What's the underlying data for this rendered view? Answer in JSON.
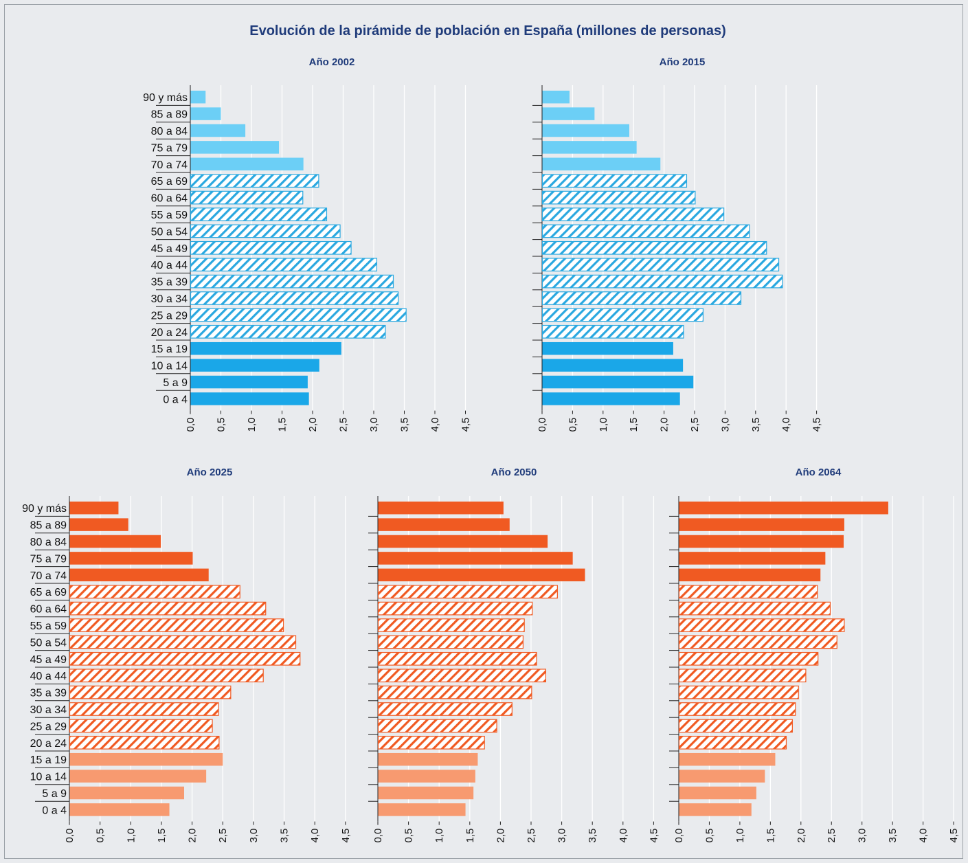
{
  "title": "Evolución de la pirámide de población en España (millones de personas)",
  "colors": {
    "blue_light": "#6ccff6",
    "blue_hatch": "#2aa8e0",
    "blue_dark": "#1aa7e8",
    "orange_dark": "#f05a22",
    "orange_hatch": "#f05a22",
    "orange_light": "#f79a70"
  },
  "chart_data": [
    {
      "type": "bar",
      "title": "Año 2002",
      "categories": [
        "90 y más",
        "85 a 89",
        "80 a 84",
        "75 a 79",
        "70 a 74",
        "65 a 69",
        "60 a 64",
        "55 a 59",
        "50 a 54",
        "45 a 49",
        "40 a 44",
        "35 a 39",
        "30 a 34",
        "25 a 29",
        "20 a 24",
        "15 a 19",
        "10 a 14",
        "5 a 9",
        "0 a 4"
      ],
      "values": [
        0.25,
        0.5,
        0.9,
        1.45,
        1.85,
        2.1,
        1.84,
        2.23,
        2.45,
        2.63,
        3.05,
        3.32,
        3.4,
        3.53,
        3.19,
        2.47,
        2.11,
        1.92,
        1.94
      ],
      "xlim": [
        0,
        4.5
      ],
      "xticks": [
        "0,0",
        "0,5",
        "1,0",
        "1,5",
        "2,0",
        "2,5",
        "3,0",
        "3,5",
        "4,0",
        "4,5"
      ],
      "show_category_labels": true,
      "palette": "blue"
    },
    {
      "type": "bar",
      "title": "Año 2015",
      "categories": [
        "90 y más",
        "85 a 89",
        "80 a 84",
        "75 a 79",
        "70 a 74",
        "65 a 69",
        "60 a 64",
        "55 a 59",
        "50 a 54",
        "45 a 49",
        "40 a 44",
        "35 a 39",
        "30 a 34",
        "25 a 29",
        "20 a 24",
        "15 a 19",
        "10 a 14",
        "5 a 9",
        "0 a 4"
      ],
      "values": [
        0.45,
        0.86,
        1.43,
        1.55,
        1.94,
        2.37,
        2.51,
        2.98,
        3.4,
        3.68,
        3.88,
        3.94,
        3.26,
        2.64,
        2.32,
        2.15,
        2.31,
        2.48,
        2.26
      ],
      "xlim": [
        0,
        4.5
      ],
      "xticks": [
        "0,0",
        "0,5",
        "1,0",
        "1,5",
        "2,0",
        "2,5",
        "3,0",
        "3,5",
        "4,0",
        "4,5"
      ],
      "show_category_labels": false,
      "palette": "blue"
    },
    {
      "type": "bar",
      "title": "Año 2025",
      "categories": [
        "90 y más",
        "85 a 89",
        "80 a 84",
        "75 a 79",
        "70 a 74",
        "65 a 69",
        "60 a 64",
        "55 a 59",
        "50 a 54",
        "45 a 49",
        "40 a 44",
        "35 a 39",
        "30 a 34",
        "25 a 29",
        "20 a 24",
        "15 a 19",
        "10 a 14",
        "5 a 9",
        "0 a 4"
      ],
      "values": [
        0.8,
        0.96,
        1.49,
        2.01,
        2.27,
        2.78,
        3.2,
        3.49,
        3.69,
        3.76,
        3.16,
        2.63,
        2.43,
        2.33,
        2.44,
        2.5,
        2.23,
        1.87,
        1.63
      ],
      "xlim": [
        0,
        4.5
      ],
      "xticks": [
        "0,0",
        "0,5",
        "1,0",
        "1,5",
        "2,0",
        "2,5",
        "3,0",
        "3,5",
        "4,0",
        "4,5"
      ],
      "show_category_labels": true,
      "palette": "orange"
    },
    {
      "type": "bar",
      "title": "Año 2050",
      "categories": [
        "90 y más",
        "85 a 89",
        "80 a 84",
        "75 a 79",
        "70 a 74",
        "65 a 69",
        "60 a 64",
        "55 a 59",
        "50 a 54",
        "45 a 49",
        "40 a 44",
        "35 a 39",
        "30 a 34",
        "25 a 29",
        "20 a 24",
        "15 a 19",
        "10 a 14",
        "5 a 9",
        "0 a 4"
      ],
      "values": [
        2.05,
        2.15,
        2.77,
        3.18,
        3.38,
        2.93,
        2.52,
        2.39,
        2.37,
        2.59,
        2.74,
        2.51,
        2.19,
        1.94,
        1.74,
        1.63,
        1.59,
        1.56,
        1.43
      ],
      "xlim": [
        0,
        4.5
      ],
      "xticks": [
        "0,0",
        "0,5",
        "1,0",
        "1,5",
        "2,0",
        "2,5",
        "3,0",
        "3,5",
        "4,0",
        "4,5"
      ],
      "show_category_labels": false,
      "palette": "orange"
    },
    {
      "type": "bar",
      "title": "Año 2064",
      "categories": [
        "90 y más",
        "85 a 89",
        "80 a 84",
        "75 a 79",
        "70 a 74",
        "65 a 69",
        "60 a 64",
        "55 a 59",
        "50 a 54",
        "45 a 49",
        "40 a 44",
        "35 a 39",
        "30 a 34",
        "25 a 29",
        "20 a 24",
        "15 a 19",
        "10 a 14",
        "5 a 9",
        "0 a 4"
      ],
      "values": [
        3.43,
        2.71,
        2.7,
        2.4,
        2.32,
        2.27,
        2.48,
        2.71,
        2.59,
        2.28,
        2.08,
        1.96,
        1.91,
        1.86,
        1.76,
        1.58,
        1.41,
        1.27,
        1.19
      ],
      "xlim": [
        0,
        4.5
      ],
      "xticks": [
        "0,0",
        "0,5",
        "1,0",
        "1,5",
        "2,0",
        "2,5",
        "3,0",
        "3,5",
        "4,0",
        "4,5"
      ],
      "show_category_labels": false,
      "palette": "orange"
    }
  ]
}
